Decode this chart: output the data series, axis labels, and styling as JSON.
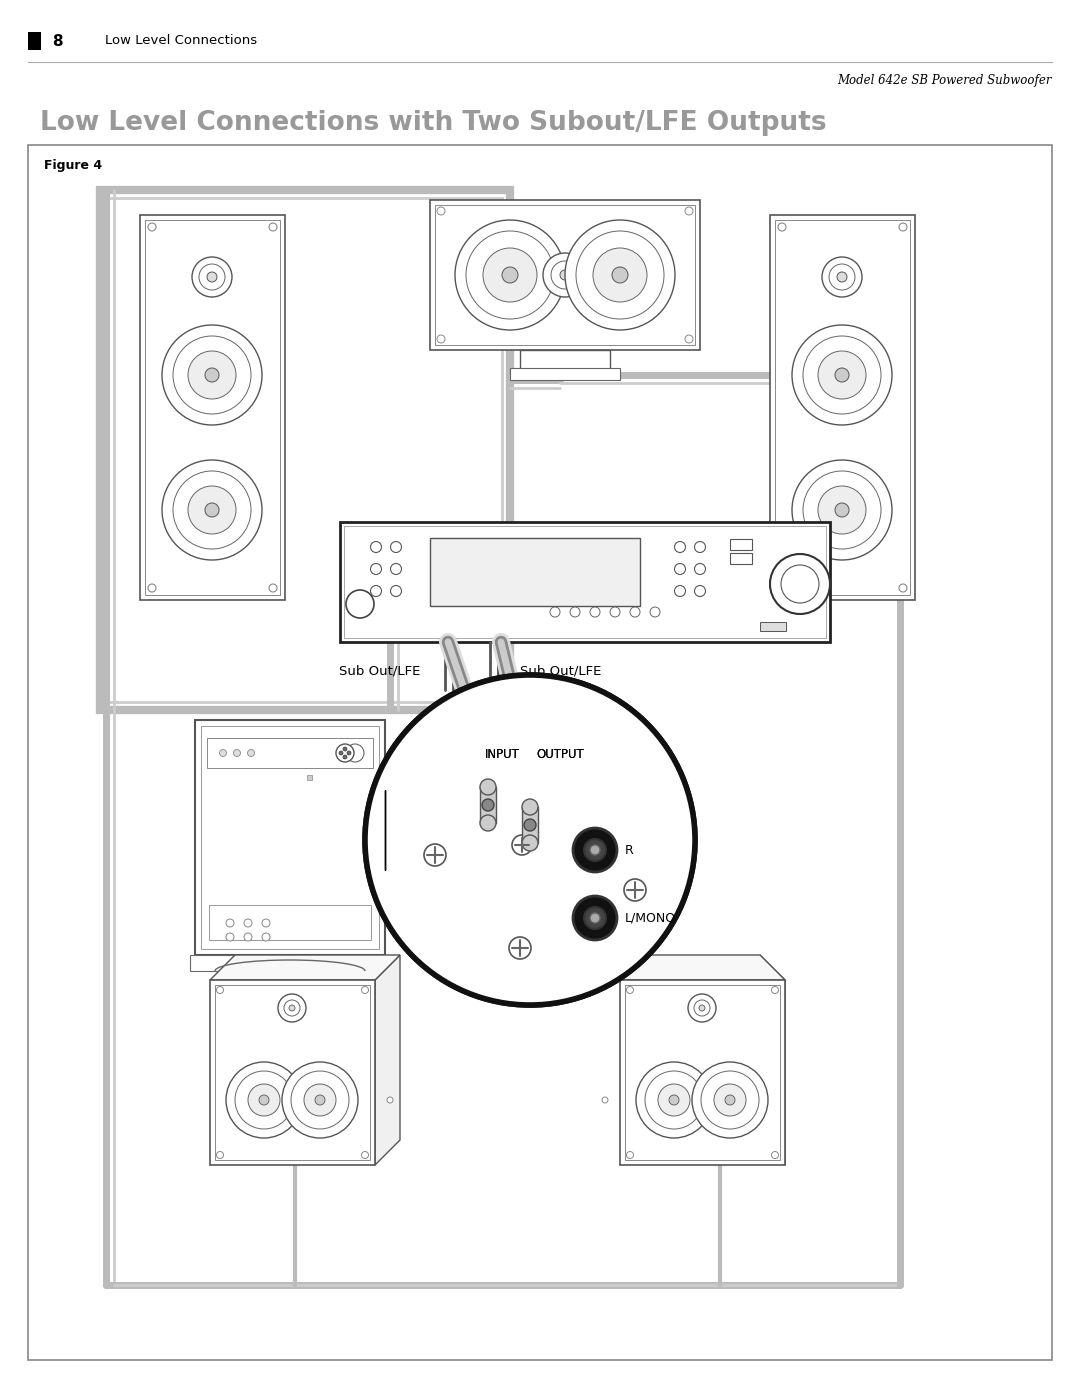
{
  "page_title": "Low Level Connections with Two Subout/LFE Outputs",
  "header_number": "8",
  "header_section": "Low Level Connections",
  "header_model": "Model 642e SB Powered Subwoofer",
  "figure_label": "Figure 4",
  "sub_out_lfe_left": "Sub Out/LFE",
  "sub_out_lfe_right": "Sub Out/LFE",
  "input_label": "INPUT",
  "output_label": "OUTPUT",
  "r_label": "R",
  "l_mono_label": "L/MONO",
  "bg_color": "#ffffff",
  "wire_gray": "#aaaaaa",
  "speaker_line": "#555555",
  "box_line": "#333333",
  "title_color": "#999999",
  "frame_color": "#aaaaaa"
}
